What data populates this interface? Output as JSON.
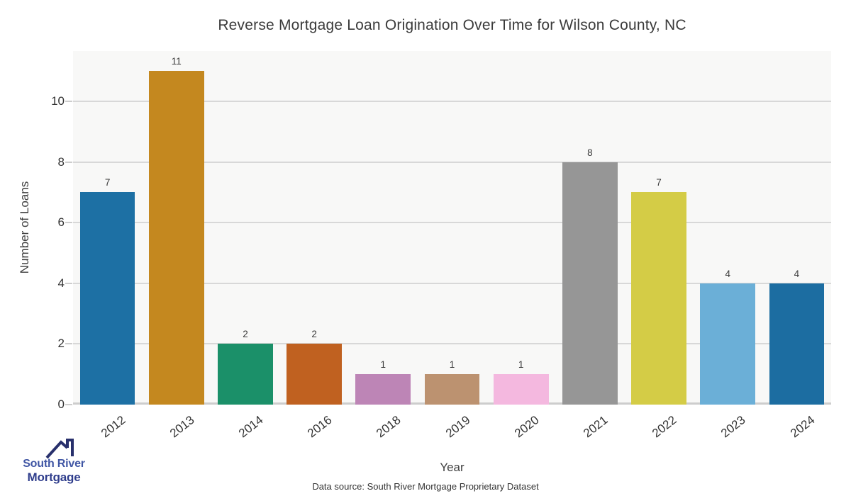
{
  "title": "Reverse Mortgage Loan Origination Over Time for Wilson County, NC",
  "chart_data": {
    "type": "bar",
    "categories": [
      "2012",
      "2013",
      "2014",
      "2016",
      "2018",
      "2019",
      "2020",
      "2021",
      "2022",
      "2023",
      "2024"
    ],
    "values": [
      7,
      11,
      2,
      2,
      1,
      1,
      1,
      8,
      7,
      4,
      4
    ],
    "bar_colors": [
      "#1d70a4",
      "#c4881f",
      "#1b9069",
      "#c06120",
      "#bd85b6",
      "#bc9270",
      "#f4b8df",
      "#969696",
      "#d4cc46",
      "#6bafd7",
      "#1c6da1"
    ],
    "title": "Reverse Mortgage Loan Origination Over Time for Wilson County, NC",
    "xlabel": "Year",
    "ylabel": "Number of Loans",
    "yticks": [
      0,
      2,
      4,
      6,
      8,
      10
    ],
    "ylim": [
      0,
      11.66
    ],
    "grid": true,
    "legend": "none",
    "plot_bg": "#f8f8f7",
    "gridline_color": "#d8d8d8",
    "value_labels_shown": true
  },
  "footer": {
    "data_source": "Data source: South River Mortgage Proprietary Dataset"
  },
  "logo": {
    "line1": "South River",
    "line2": "Mortgage",
    "roof_color": "#28306c",
    "line1_color": "#4056a4",
    "line2_color": "#2f3d8c"
  }
}
